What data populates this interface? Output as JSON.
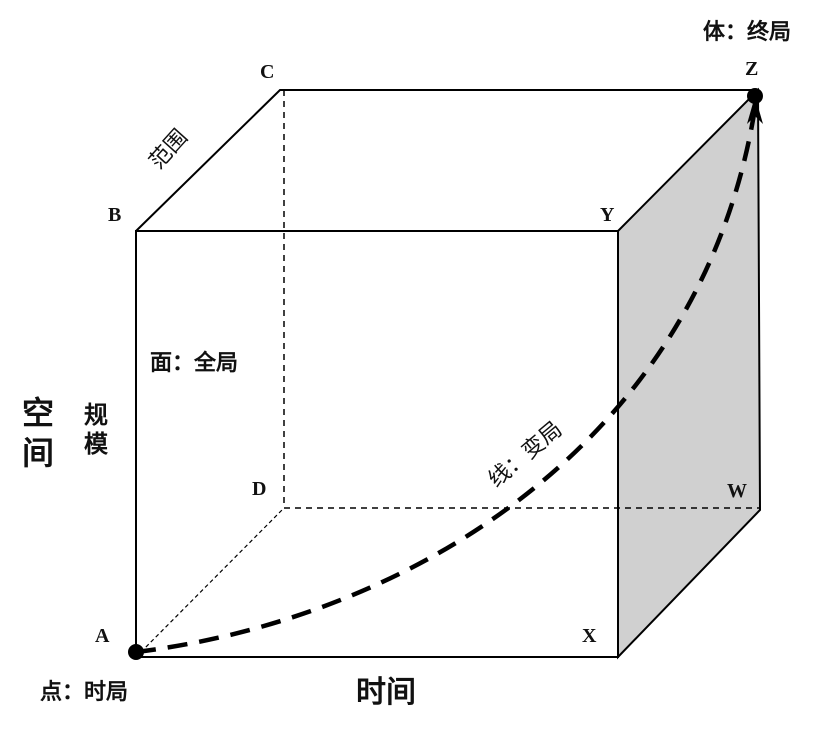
{
  "vertices": {
    "A": "A",
    "B": "B",
    "C": "C",
    "D": "D",
    "X": "X",
    "Y": "Y",
    "Z": "Z",
    "W": "W"
  },
  "labels": {
    "point": "点：时局",
    "line": "线：变局",
    "face": "面：全局",
    "body": "体：终局",
    "time": "时间",
    "space_1": "空",
    "space_2": "间",
    "scale_1": "规",
    "scale_2": "模",
    "range": "范围"
  },
  "colors": {
    "right_face": "#d0d0d0",
    "line": "#000000"
  }
}
